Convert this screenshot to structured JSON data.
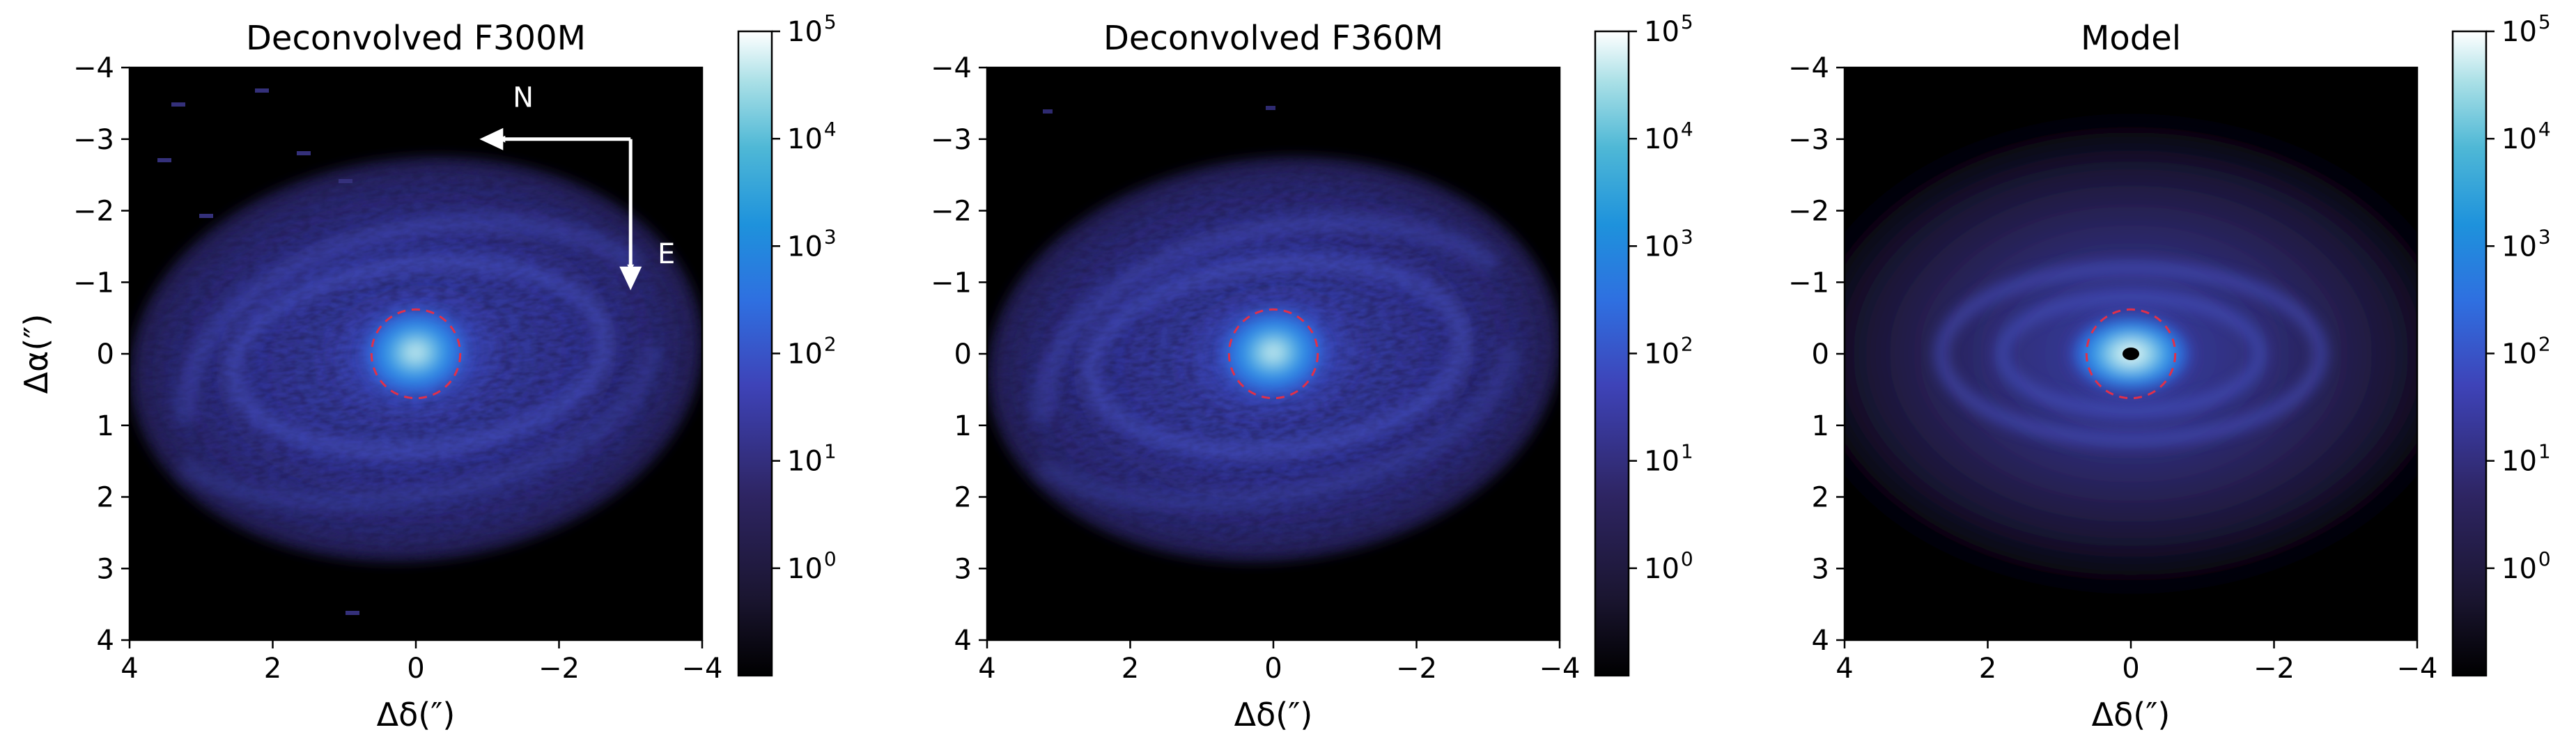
{
  "chart_data": [
    {
      "type": "heatmap",
      "title": "Deconvolved F300M",
      "xlabel": "Δδ(″)",
      "ylabel": "Δα(″)",
      "xlim": [
        4,
        -4
      ],
      "ylim": [
        4,
        -4
      ],
      "xticks": [
        "4",
        "2",
        "0",
        "−2",
        "−4"
      ],
      "yticks": [
        "−4",
        "−3",
        "−2",
        "−1",
        "0",
        "1",
        "2",
        "3",
        "4"
      ],
      "colorbar": {
        "scale": "log",
        "range": [
          0.1,
          100000
        ],
        "ticks": [
          "10",
          "10",
          "10",
          "10",
          "10",
          "10"
        ],
        "exponents": [
          "0",
          "1",
          "2",
          "3",
          "4",
          "5"
        ]
      },
      "colormap": [
        "#000000",
        "#2e2563",
        "#4a5bd8",
        "#1f8ae0",
        "#59bfd8",
        "#ffffff"
      ],
      "compass": {
        "north_label": "N",
        "east_label": "E"
      },
      "marker": "red dashed circle radius 0.6 at (0,0)"
    },
    {
      "type": "heatmap",
      "title": "Deconvolved F360M",
      "xlabel": "Δδ(″)",
      "xlim": [
        4,
        -4
      ],
      "ylim": [
        4,
        -4
      ],
      "xticks": [
        "4",
        "2",
        "0",
        "−2",
        "−4"
      ],
      "yticks": [
        "−4",
        "−3",
        "−2",
        "−1",
        "0",
        "1",
        "2",
        "3",
        "4"
      ],
      "colorbar": {
        "scale": "log",
        "range": [
          0.1,
          100000
        ],
        "ticks": [
          "10",
          "10",
          "10",
          "10",
          "10",
          "10"
        ],
        "exponents": [
          "0",
          "1",
          "2",
          "3",
          "4",
          "5"
        ]
      },
      "marker": "red dashed circle radius 0.6 at (0,0)"
    },
    {
      "type": "heatmap",
      "title": "Model",
      "xlabel": "Δδ(″)",
      "xlim": [
        4,
        -4
      ],
      "ylim": [
        4,
        -4
      ],
      "xticks": [
        "4",
        "2",
        "0",
        "−2",
        "−4"
      ],
      "yticks": [
        "−4",
        "−3",
        "−2",
        "−1",
        "0",
        "1",
        "2",
        "3",
        "4"
      ],
      "colorbar": {
        "scale": "log",
        "range": [
          0.1,
          100000
        ],
        "ticks": [
          "10",
          "10",
          "10",
          "10",
          "10",
          "10"
        ],
        "exponents": [
          "0",
          "1",
          "2",
          "3",
          "4",
          "5"
        ]
      },
      "marker": "red dashed circle radius 0.6 at (0,0)"
    }
  ]
}
